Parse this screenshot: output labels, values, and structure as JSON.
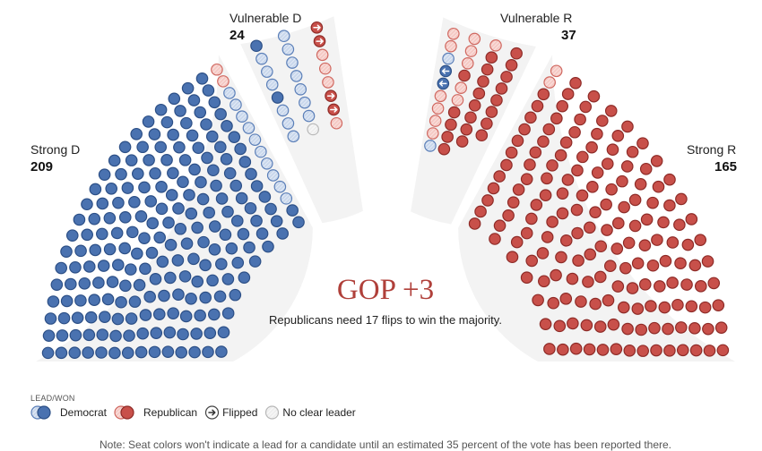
{
  "chart_data": {
    "type": "parliament-hemicycle",
    "groups": [
      {
        "key": "strong_d",
        "label": "Strong D",
        "count": "209",
        "seats": 209
      },
      {
        "key": "vuln_d",
        "label": "Vulnerable D",
        "count": "24",
        "seats": 24,
        "composition": {
          "dem_lead": 13,
          "rep_lead": 5,
          "flipped_to_rep": 4,
          "no_clear_leader": 2
        }
      },
      {
        "key": "vuln_r",
        "label": "Vulnerable R",
        "count": "37",
        "seats": 37,
        "composition": {
          "rep_lead": 33,
          "dem_lead": 1,
          "flipped_to_dem": 2,
          "no_clear_leader": 1
        }
      },
      {
        "key": "strong_r",
        "label": "Strong R",
        "count": "165",
        "seats": 165
      }
    ],
    "center_title": "GOP +3",
    "center_subtitle": "Republicans need 17 flips to win the majority."
  },
  "legend": {
    "title": "LEAD/WON",
    "items": [
      {
        "key": "dem",
        "label": "Democrat"
      },
      {
        "key": "rep",
        "label": "Republican"
      },
      {
        "key": "flip",
        "label": "Flipped"
      },
      {
        "key": "none",
        "label": "No clear leader"
      }
    ]
  },
  "note": "Note: Seat colors won't indicate a lead for a candidate until an estimated 35 percent of the vote has been reported there.",
  "colors": {
    "dem_fill": "#4a72b0",
    "dem_stroke": "#2c4f86",
    "dem_light_fill": "#c9d7ec",
    "dem_light_stroke": "#5b7fb8",
    "rep_fill": "#c8504a",
    "rep_stroke": "#8e2b27",
    "rep_light_fill": "#f5c9c4",
    "rep_light_stroke": "#d06860",
    "none_fill": "#f2f2f2",
    "none_stroke": "#b8b8b8",
    "band": "#f3f3f3",
    "accent": "#b0403a"
  }
}
